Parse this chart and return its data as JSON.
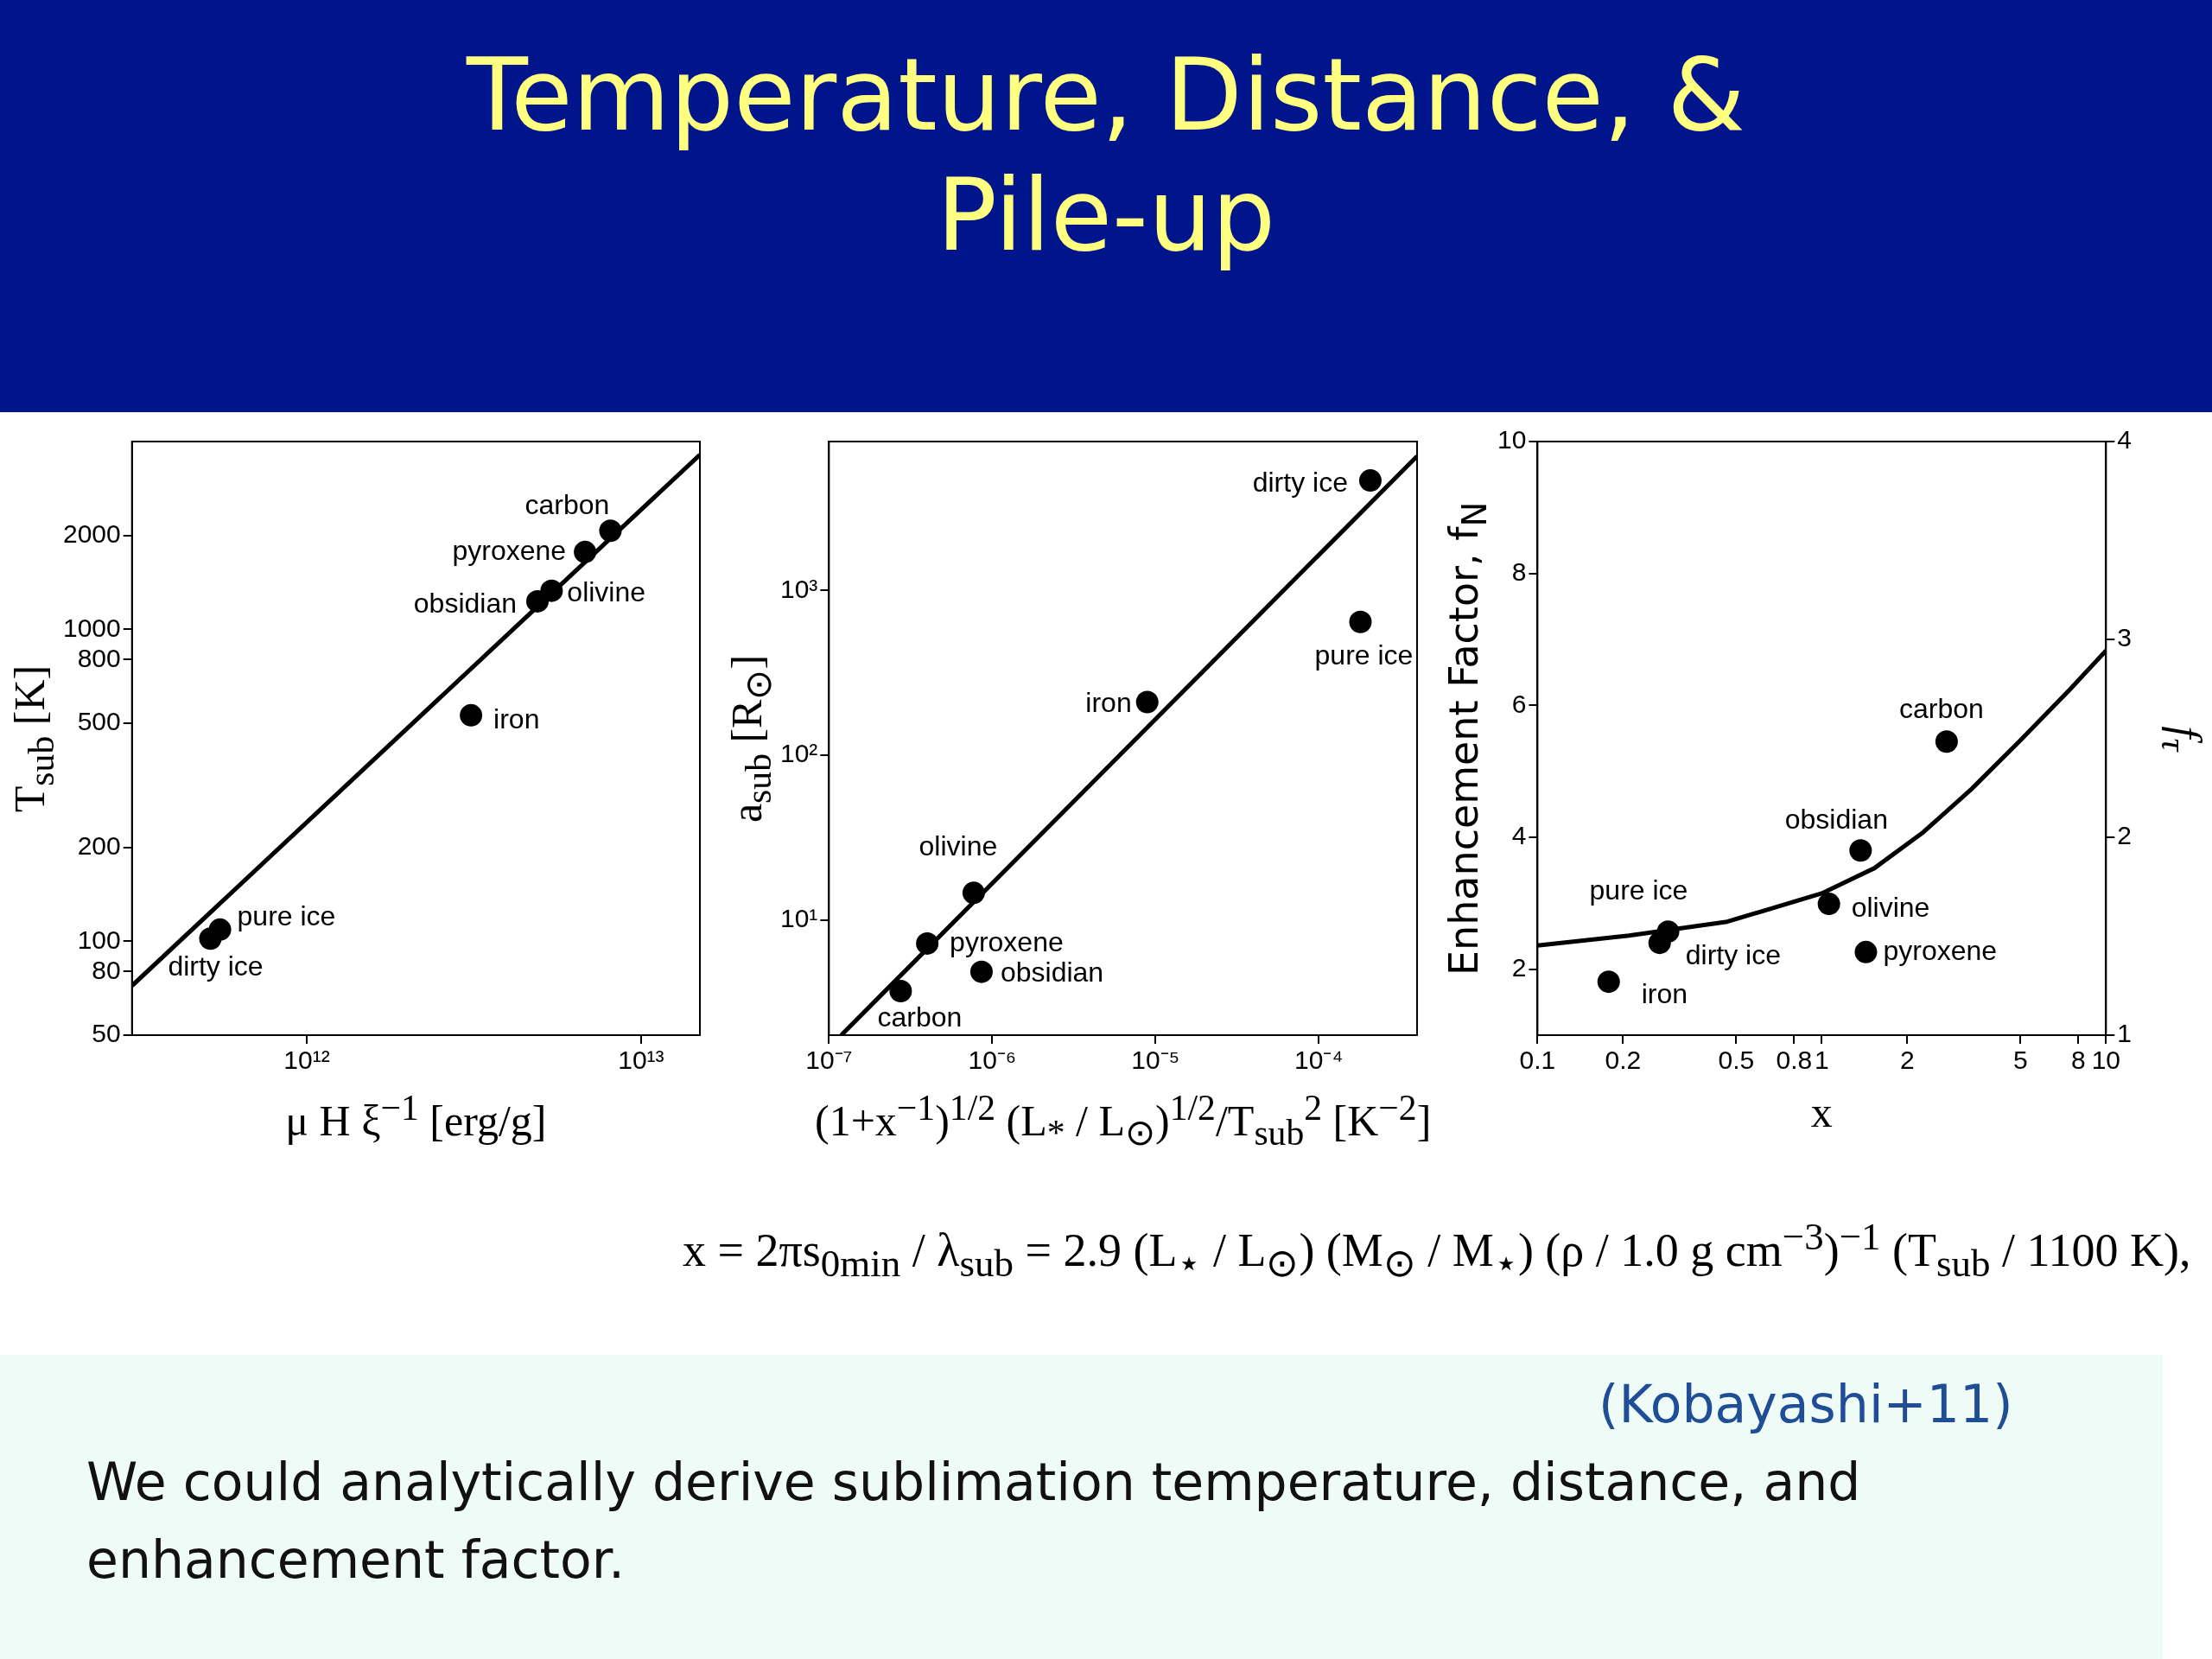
{
  "chart_data": [
    {
      "type": "scatter",
      "title": "Temperature, Distance, & Pile-up",
      "xlabel": "μ H ξ$^{−1}$  [erg/g]",
      "ylabel": "T$_{sub}$ [K]",
      "log": "xy",
      "xlim": [
        300000000000.0,
        15000000000000.0
      ],
      "ylim": [
        50,
        4000
      ],
      "xticks": [
        {
          "value": 1000000000000.0,
          "label": "10¹²"
        },
        {
          "value": 10000000000000.0,
          "label": "10¹³"
        }
      ],
      "yticks": [
        50,
        80,
        100,
        200,
        500,
        800,
        1000,
        2000
      ],
      "annotations": [
        "x = 2πs$_{0min}$ / λ$_{sub}$ = 2.9 (L$_{⋆}$ / L$_{⊙}$) (M$_{⊙}$ / M$_{⋆}$) (ρ / 1.0 g cm$^{−3}$)$^{−1}$ (T$_{sub}$ / 1100 K),",
        "(Kobayashi+11)",
        "We could analytically derive sublimation temperature, distance, and enhancement factor."
      ],
      "series": [
        {
          "name": "carbon",
          "color": "#000000",
          "marker": "circle",
          "x": [
            8100000000000.0
          ],
          "values": [
            2070
          ]
        },
        {
          "name": "pyroxene",
          "color": "#000000",
          "marker": "circle",
          "x": [
            6800000000000.0
          ],
          "values": [
            1770
          ]
        },
        {
          "name": "olivine",
          "color": "#000000",
          "marker": "circle",
          "x": [
            5400000000000.0
          ],
          "values": [
            1330
          ]
        },
        {
          "name": "obsidian",
          "color": "#000000",
          "marker": "circle",
          "x": [
            4900000000000.0
          ],
          "values": [
            1230
          ]
        },
        {
          "name": "iron",
          "color": "#000000",
          "marker": "circle",
          "x": [
            3100000000000.0
          ],
          "values": [
            530
          ]
        },
        {
          "name": "pure ice",
          "color": "#000000",
          "marker": "circle",
          "x": [
            550000000000.0
          ],
          "values": [
            109
          ]
        },
        {
          "name": "dirty ice",
          "color": "#000000",
          "marker": "circle",
          "x": [
            515000000000.0
          ],
          "values": [
            102
          ]
        },
        {
          "type": "line",
          "color": "#000000",
          "x": [
            300000000000.0,
            15000000000000.0
          ],
          "values": [
            72,
            3630
          ]
        }
      ]
    },
    {
      "type": "scatter",
      "xlabel": "(1+x$^{−1}$)$^{1/2}$ (L$_{*}$ / L$_{⊙}$)$^{1/2}$/T$_{sub}$$^{2}$  [K$^{−2}$]",
      "ylabel": "a$_{sub}$  [R$_{⊙}$]",
      "log": "xy",
      "xlim": [
        1e-07,
        0.0004
      ],
      "ylim": [
        2,
        8000
      ],
      "xticks": [
        {
          "value": 1e-07,
          "label": "10⁻⁷"
        },
        {
          "value": 1e-06,
          "label": "10⁻⁶"
        },
        {
          "value": 1e-05,
          "label": "10⁻⁵"
        },
        {
          "value": 0.0001,
          "label": "10⁻⁴"
        }
      ],
      "yticks": [
        {
          "value": 10,
          "label": "10¹"
        },
        {
          "value": 100,
          "label": "10²"
        },
        {
          "value": 1000,
          "label": "10³"
        }
      ],
      "series": [
        {
          "name": "carbon",
          "color": "#000000",
          "marker": "circle",
          "x": [
            2.75e-07
          ],
          "values": [
            3.7
          ]
        },
        {
          "name": "pyroxene",
          "color": "#000000",
          "marker": "circle",
          "x": [
            4e-07
          ],
          "values": [
            7.2
          ]
        },
        {
          "name": "olivine",
          "color": "#000000",
          "marker": "circle",
          "x": [
            7.7e-07
          ],
          "values": [
            14.6
          ]
        },
        {
          "name": "obsidian",
          "color": "#000000",
          "marker": "circle",
          "x": [
            8.6e-07
          ],
          "values": [
            4.85
          ]
        },
        {
          "name": "iron",
          "color": "#000000",
          "marker": "circle",
          "x": [
            8.9e-06
          ],
          "values": [
            210
          ]
        },
        {
          "name": "pure ice",
          "color": "#000000",
          "marker": "circle",
          "x": [
            0.00018
          ],
          "values": [
            644
          ]
        },
        {
          "name": "dirty ice",
          "color": "#000000",
          "marker": "circle",
          "x": [
            0.000207
          ],
          "values": [
            4640
          ]
        },
        {
          "type": "line",
          "color": "#000000",
          "x": [
            1.19e-07,
            0.0004
          ],
          "values": [
            2.0,
            6520
          ]
        }
      ]
    },
    {
      "type": "scatter",
      "xlabel": "x",
      "ylabel": "Enhancement Factor, f$_{N}$",
      "y2label": "f$_{τ}$",
      "log": "x",
      "xlim": [
        0.1,
        10
      ],
      "ylim": [
        1,
        10
      ],
      "y2lim": [
        1,
        4
      ],
      "xticks": [
        0.1,
        0.2,
        0.5,
        0.8,
        1,
        2,
        5,
        8,
        10
      ],
      "yticks": [
        2,
        4,
        6,
        8,
        10
      ],
      "y2ticks": [
        1,
        2,
        3,
        4
      ],
      "series": [
        {
          "name": "carbon",
          "color": "#000000",
          "marker": "circle",
          "x": [
            2.75
          ],
          "values": [
            5.45
          ]
        },
        {
          "name": "pyroxene",
          "color": "#000000",
          "marker": "circle",
          "x": [
            1.43
          ],
          "values": [
            2.26
          ]
        },
        {
          "name": "olivine",
          "color": "#000000",
          "marker": "circle",
          "x": [
            1.06
          ],
          "values": [
            2.99
          ]
        },
        {
          "name": "obsidian",
          "color": "#000000",
          "marker": "circle",
          "x": [
            1.37
          ],
          "values": [
            3.8
          ]
        },
        {
          "name": "iron",
          "color": "#000000",
          "marker": "circle",
          "x": [
            0.178
          ],
          "values": [
            1.81
          ]
        },
        {
          "name": "pure ice",
          "color": "#000000",
          "marker": "circle",
          "x": [
            0.288
          ],
          "values": [
            2.57
          ]
        },
        {
          "name": "dirty ice",
          "color": "#000000",
          "marker": "circle",
          "x": [
            0.269
          ],
          "values": [
            2.4
          ]
        },
        {
          "type": "line",
          "color": "#000000",
          "x": [
            0.1,
            0.21,
            0.465,
            1,
            1.53,
            2.28,
            3.38,
            5.0,
            7.5,
            10
          ],
          "values": [
            2.36,
            2.51,
            2.72,
            3.15,
            3.53,
            4.08,
            4.74,
            5.47,
            6.25,
            6.83
          ]
        }
      ]
    }
  ]
}
